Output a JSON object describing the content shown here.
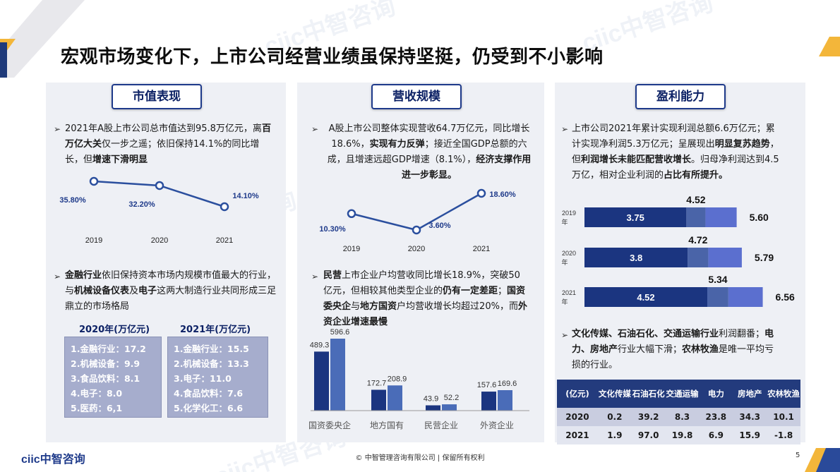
{
  "title": "宏观市场变化下，上市公司经营业绩虽保持坚挺，仍受到不小影响",
  "watermark": "ciic中智咨询",
  "panels": {
    "market_value": {
      "heading": "市值表现",
      "para1": [
        "2021年A股上市公司总市值达到95.8万亿元，离",
        "百万亿大关",
        "仅一步之遥；依旧保持14.1%的同比增长，但",
        "增速下滑明显"
      ],
      "para2": [
        "金融行业",
        "依旧保持资本市场内规模市值最大的行业，与",
        "机械设备仪表",
        "及",
        "电子",
        "这两大制造行业共同形成三足鼎立的市场格局"
      ],
      "box2020_title": "2020年(万亿元)",
      "box2021_title": "2021年(万亿元)",
      "box2020": [
        "1.金融行业：17.2",
        "2.机械设备：9.9",
        "3.食品饮料：8.1",
        "4.电子：8.0",
        "5.医药：6,1"
      ],
      "box2021": [
        "1.金融行业：15.5",
        "2.机械设备：13.3",
        "3.电子：11.0",
        "4.食品饮料：7.6",
        "5.化学化工：6.6"
      ]
    },
    "revenue": {
      "heading": "营收规模",
      "para1": [
        "A股上市公司整体实现营收64.7万亿元，同比增长18.6%，",
        "实现有力反弹",
        "；接近全国GDP总额的六成，且增速远超GDP增速（8.1%），",
        "经济支撑作用进一步彰显。"
      ],
      "para2": [
        "民营",
        "上市企业户均营收同比增长18.9%，突破50亿元，但相较其他类型企业的",
        "仍有一定差距",
        "；",
        "国资委央企",
        "与",
        "地方国资",
        "户均营收增长均超过20%，而",
        "外资企业增速最慢"
      ]
    },
    "profit": {
      "heading": "盈利能力",
      "para1": [
        "上市公司2021年累计实现利润总额6.6万亿元；累计实现净利润5.3万亿元；呈展现出",
        "明显复苏趋势",
        "，但",
        "利润增长未能匹配营收增长",
        "。归母净利润达到4.5万亿，相对企业利润的",
        "占比有所提升。"
      ],
      "para2": [
        "文化传媒、石油石化、交通运输行业",
        "利润翻番；",
        "电力、房地产",
        "行业大幅下滑；",
        "农林牧渔",
        "是唯一平均亏损的行业。"
      ],
      "table": {
        "headers": [
          "(亿元)",
          "文化传媒",
          "石油石化",
          "交通运输",
          "电力",
          "房地产",
          "农林牧渔"
        ],
        "rows": [
          [
            "2020",
            "0.2",
            "39.2",
            "8.3",
            "23.8",
            "34.3",
            "10.1"
          ],
          [
            "2021",
            "1.9",
            "97.0",
            "19.8",
            "6.9",
            "15.9",
            "-1.8"
          ]
        ]
      }
    }
  },
  "chart_data": [
    {
      "type": "line",
      "x": [
        "2019",
        "2020",
        "2021"
      ],
      "values": [
        35.8,
        32.2,
        14.1
      ],
      "data_labels": [
        "35.80%",
        "32.20%",
        "14.10%"
      ],
      "color": "#2b4f9e"
    },
    {
      "type": "line",
      "x": [
        "2019",
        "2020",
        "2021"
      ],
      "values": [
        10.3,
        3.6,
        18.6
      ],
      "data_labels": [
        "10.30%",
        "3.60%",
        "18.60%"
      ],
      "color": "#2b4f9e"
    },
    {
      "type": "bar",
      "categories": [
        "国资委央企",
        "地方国有",
        "民营企业",
        "外资企业"
      ],
      "series": [
        {
          "values": [
            489.3,
            172.7,
            43.9,
            157.6
          ],
          "color": "#1b3580"
        },
        {
          "values": [
            596.6,
            208.9,
            52.2,
            169.6
          ],
          "color": "#4a6cb8"
        }
      ]
    },
    {
      "type": "bar",
      "orientation": "horizontal-stacked",
      "categories": [
        "2019年",
        "2020年",
        "2021年"
      ],
      "segment1": [
        3.75,
        3.8,
        4.52
      ],
      "segment1_labels": [
        "3.75",
        "3.8",
        "4.52"
      ],
      "middle_labels": [
        "4.52",
        "4.72",
        "5.34"
      ],
      "totals": [
        5.6,
        5.79,
        6.56
      ],
      "total_labels": [
        "5.60",
        "5.79",
        "6.56"
      ],
      "colors": [
        "#1b3580",
        "#4a64a8",
        "#5b6fcf"
      ]
    }
  ],
  "footer": {
    "copyright": "© 中智管理咨询有限公司 | 保留所有权利",
    "page": "5",
    "logo": "ciic中智咨询"
  }
}
